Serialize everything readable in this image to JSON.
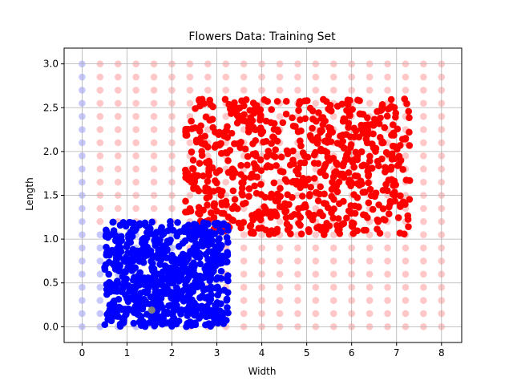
{
  "chart_data": {
    "type": "scatter",
    "title": "Flowers Data: Training Set",
    "xlabel": "Width",
    "ylabel": "Length",
    "xlim": [
      -0.4,
      8.45
    ],
    "ylim": [
      -0.18,
      3.18
    ],
    "xticks": [
      0,
      1,
      2,
      3,
      4,
      5,
      6,
      7,
      8
    ],
    "yticks": [
      0.0,
      0.5,
      1.0,
      1.5,
      2.0,
      2.5,
      3.0
    ],
    "xtick_labels": [
      "0",
      "1",
      "2",
      "3",
      "4",
      "5",
      "6",
      "7",
      "8"
    ],
    "ytick_labels": [
      "0.0",
      "0.5",
      "1.0",
      "1.5",
      "2.0",
      "2.5",
      "3.0"
    ],
    "grid": true,
    "colors": {
      "red_class": "#ff0000",
      "blue_class": "#0000ff",
      "red_background": "#ff0000",
      "blue_background": "#0000ff",
      "highlight_point": "#808080"
    },
    "background_grid": {
      "x_start": 0,
      "x_end": 8,
      "x_step": 0.4,
      "y_start": 0,
      "y_end": 3,
      "y_step": 0.15,
      "alpha": 0.22,
      "rule": "blue when width < 2.3 and length <= 1.1, blue when width < 0.2, otherwise red"
    },
    "series": [
      {
        "color": "red",
        "x_range": [
          2.3,
          7.3
        ],
        "y_range": [
          1.05,
          2.6
        ],
        "approx_count": 720
      },
      {
        "color": "blue",
        "x_range": [
          0.5,
          3.25
        ],
        "y_range": [
          0.0,
          1.2
        ],
        "approx_count": 720
      }
    ],
    "highlight_point": {
      "x": 1.55,
      "y": 0.19
    }
  }
}
